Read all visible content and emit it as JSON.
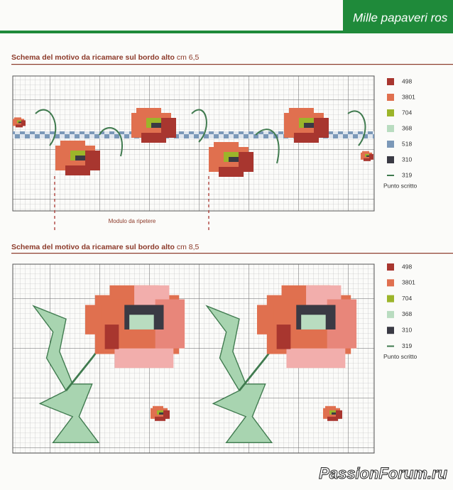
{
  "header": {
    "title": "Mille papaveri ros"
  },
  "sections": [
    {
      "title": "Schema del motivo da ricamare sul bordo alto",
      "size": "cm 6,5",
      "legend": [
        {
          "code": "498",
          "color": "#a8362f"
        },
        {
          "code": "3801",
          "color": "#e0704f"
        },
        {
          "code": "704",
          "color": "#9cb52a"
        },
        {
          "code": "368",
          "color": "#b9dcc0"
        },
        {
          "code": "518",
          "color": "#7b98b8"
        },
        {
          "code": "310",
          "color": "#3a3a44"
        },
        {
          "code": "319",
          "color": "#3f7a4e",
          "line": true
        }
      ],
      "legend_note": "Punto scritto",
      "repeat_label": "Modulo da ripetere"
    },
    {
      "title": "Schema del motivo da ricamare sul bordo alto",
      "size": "cm 8,5",
      "legend": [
        {
          "code": "498",
          "color": "#a8362f"
        },
        {
          "code": "3801",
          "color": "#e0704f"
        },
        {
          "code": "704",
          "color": "#9cb52a"
        },
        {
          "code": "368",
          "color": "#b9dcc0"
        },
        {
          "code": "310",
          "color": "#3a3a44"
        },
        {
          "code": "319",
          "color": "#3f7a4e",
          "line": true
        }
      ],
      "legend_note": "Punto scritto"
    }
  ],
  "watermark": "PassionForum.ru"
}
